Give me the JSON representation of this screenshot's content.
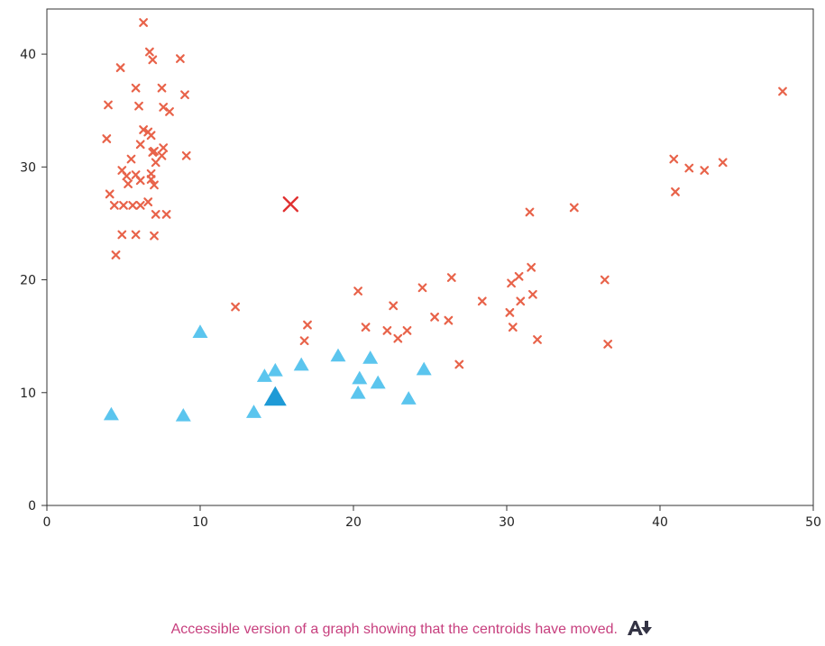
{
  "caption": {
    "text": "Accessible version of a graph showing that the centroids have moved.",
    "icon": "accessibility-download-icon"
  },
  "chart_data": {
    "type": "scatter",
    "title": "",
    "xlabel": "",
    "ylabel": "",
    "xlim": [
      0,
      50
    ],
    "ylim": [
      0,
      44
    ],
    "xticks": [
      0,
      10,
      20,
      30,
      40,
      50
    ],
    "yticks": [
      0,
      10,
      20,
      30,
      40
    ],
    "grid": false,
    "legend": "none",
    "colors": {
      "cluster_x": "#e8634a",
      "cluster_tri": "#5bc5ee",
      "centroid_x": "#e03030",
      "centroid_tri": "#1e9ad6"
    },
    "series": [
      {
        "marker": "x",
        "color": "#e8634a",
        "points": [
          [
            6.3,
            42.8
          ],
          [
            6.7,
            40.2
          ],
          [
            6.9,
            39.5
          ],
          [
            8.7,
            39.6
          ],
          [
            4.8,
            38.8
          ],
          [
            5.8,
            37.0
          ],
          [
            7.5,
            37.0
          ],
          [
            9.0,
            36.4
          ],
          [
            4.0,
            35.5
          ],
          [
            6.0,
            35.4
          ],
          [
            7.6,
            35.3
          ],
          [
            8.0,
            34.9
          ],
          [
            6.3,
            33.3
          ],
          [
            6.6,
            33.1
          ],
          [
            6.8,
            32.8
          ],
          [
            3.9,
            32.5
          ],
          [
            6.1,
            32.0
          ],
          [
            7.0,
            31.4
          ],
          [
            7.6,
            31.7
          ],
          [
            6.9,
            31.3
          ],
          [
            7.5,
            31.0
          ],
          [
            9.1,
            31.0
          ],
          [
            7.1,
            30.4
          ],
          [
            5.5,
            30.7
          ],
          [
            4.9,
            29.7
          ],
          [
            5.2,
            29.2
          ],
          [
            5.8,
            29.3
          ],
          [
            6.8,
            29.4
          ],
          [
            6.1,
            28.8
          ],
          [
            7.0,
            28.4
          ],
          [
            5.3,
            28.5
          ],
          [
            6.8,
            28.9
          ],
          [
            4.1,
            27.6
          ],
          [
            4.4,
            26.6
          ],
          [
            5.0,
            26.6
          ],
          [
            5.6,
            26.6
          ],
          [
            6.1,
            26.6
          ],
          [
            6.6,
            26.9
          ],
          [
            7.1,
            25.8
          ],
          [
            7.8,
            25.8
          ],
          [
            4.9,
            24.0
          ],
          [
            5.8,
            24.0
          ],
          [
            7.0,
            23.9
          ],
          [
            4.5,
            22.2
          ],
          [
            12.3,
            17.6
          ],
          [
            17.0,
            16.0
          ],
          [
            16.8,
            14.6
          ],
          [
            20.3,
            19.0
          ],
          [
            20.8,
            15.8
          ],
          [
            22.2,
            15.5
          ],
          [
            22.6,
            17.7
          ],
          [
            22.9,
            14.8
          ],
          [
            23.5,
            15.5
          ],
          [
            24.5,
            19.3
          ],
          [
            25.3,
            16.7
          ],
          [
            26.2,
            16.4
          ],
          [
            26.4,
            20.2
          ],
          [
            26.9,
            12.5
          ],
          [
            28.4,
            18.1
          ],
          [
            30.2,
            17.1
          ],
          [
            30.3,
            19.7
          ],
          [
            30.4,
            15.8
          ],
          [
            30.8,
            20.3
          ],
          [
            30.9,
            18.1
          ],
          [
            31.6,
            21.1
          ],
          [
            31.7,
            18.7
          ],
          [
            32.0,
            14.7
          ],
          [
            31.5,
            26.0
          ],
          [
            34.4,
            26.4
          ],
          [
            36.4,
            20.0
          ],
          [
            36.6,
            14.3
          ],
          [
            40.9,
            30.7
          ],
          [
            41.0,
            27.8
          ],
          [
            41.9,
            29.9
          ],
          [
            42.9,
            29.7
          ],
          [
            44.1,
            30.4
          ],
          [
            48.0,
            36.7
          ]
        ]
      },
      {
        "marker": "triangle",
        "color": "#5bc5ee",
        "points": [
          [
            4.2,
            8.0
          ],
          [
            8.9,
            7.9
          ],
          [
            10.0,
            15.3
          ],
          [
            13.5,
            8.2
          ],
          [
            14.2,
            11.4
          ],
          [
            14.9,
            11.9
          ],
          [
            16.6,
            12.4
          ],
          [
            19.0,
            13.2
          ],
          [
            20.3,
            9.9
          ],
          [
            20.4,
            11.2
          ],
          [
            21.1,
            13.0
          ],
          [
            21.6,
            10.8
          ],
          [
            23.6,
            9.4
          ],
          [
            24.6,
            12.0
          ]
        ]
      }
    ],
    "centroids": [
      {
        "marker": "x",
        "color": "#e03030",
        "x": 15.9,
        "y": 26.7
      },
      {
        "marker": "triangle",
        "color": "#1e9ad6",
        "x": 14.9,
        "y": 9.5
      }
    ]
  }
}
